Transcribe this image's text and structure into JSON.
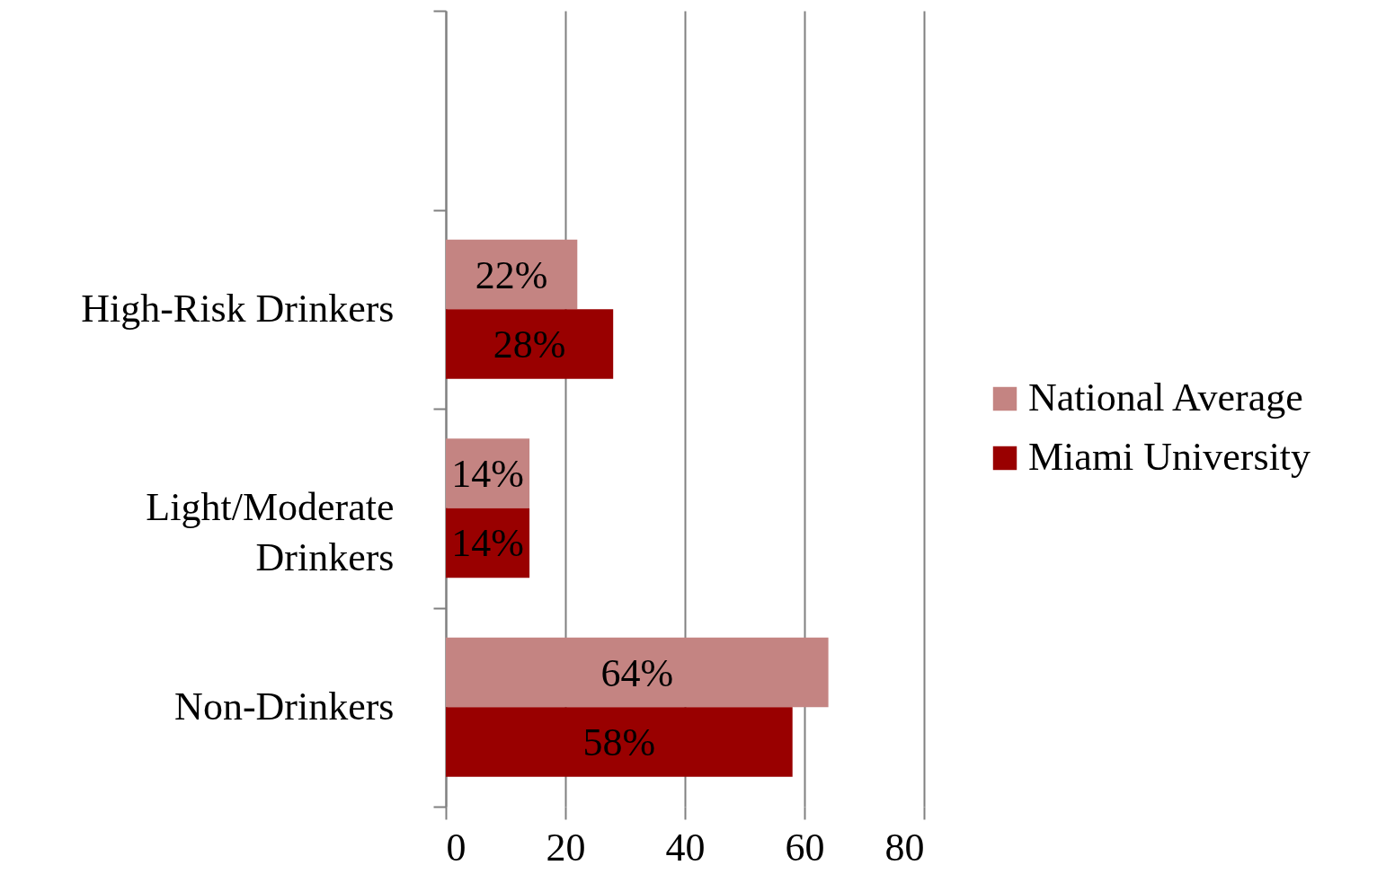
{
  "chart_data": {
    "type": "bar",
    "orientation": "horizontal",
    "categories": [
      null,
      "High-Risk Drinkers",
      "Light/Moderate Drinkers",
      "Non-Drinkers"
    ],
    "series": [
      {
        "name": "National Average",
        "color": "#c48482",
        "values": [
          null,
          22,
          14,
          64
        ],
        "value_labels": [
          null,
          "22%",
          "14%",
          "64%"
        ]
      },
      {
        "name": "Miami University",
        "color": "#990000",
        "values": [
          null,
          28,
          14,
          58
        ],
        "value_labels": [
          null,
          "28%",
          "14%",
          "58%"
        ]
      }
    ],
    "xlim": [
      0,
      80
    ],
    "xticks": [
      0,
      20,
      40,
      60,
      80
    ],
    "grid": "x",
    "legend": "right"
  }
}
